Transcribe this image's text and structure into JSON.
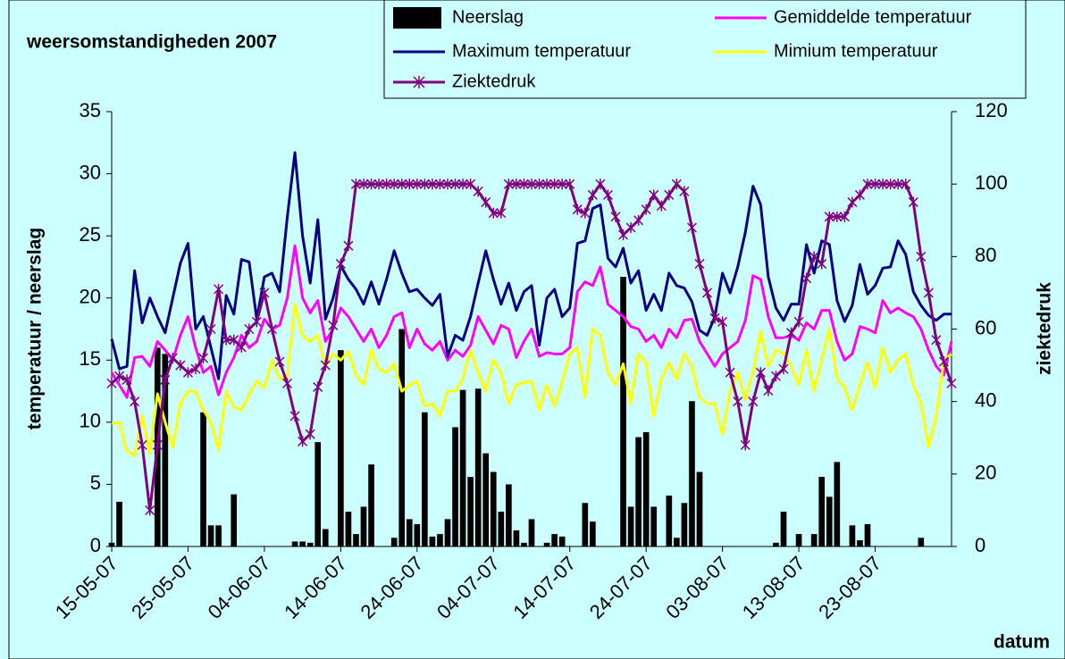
{
  "chart_data": {
    "type": "combo",
    "title": "weersomstandigheden 2007",
    "y_label": "temperatuur / neerslag",
    "y2_label": "ziektedruk",
    "x_label": "datum",
    "categories": [
      "15-05-07",
      null,
      null,
      null,
      null,
      null,
      null,
      null,
      null,
      null,
      "25-05-07",
      null,
      null,
      null,
      null,
      null,
      null,
      null,
      null,
      null,
      "04-06-07",
      null,
      null,
      null,
      null,
      null,
      null,
      null,
      null,
      null,
      "14-06-07",
      null,
      null,
      null,
      null,
      null,
      null,
      null,
      null,
      null,
      "24-06-07",
      null,
      null,
      null,
      null,
      null,
      null,
      null,
      null,
      null,
      "04-07-07",
      null,
      null,
      null,
      null,
      null,
      null,
      null,
      null,
      null,
      "14-07-07",
      null,
      null,
      null,
      null,
      null,
      null,
      null,
      null,
      null,
      "24-07-07",
      null,
      null,
      null,
      null,
      null,
      null,
      null,
      null,
      null,
      "03-08-07",
      null,
      null,
      null,
      null,
      null,
      null,
      null,
      null,
      null,
      "13-08-07",
      null,
      null,
      null,
      null,
      null,
      null,
      null,
      null,
      null,
      "23-08-07",
      null,
      null,
      null,
      null,
      null,
      null,
      null,
      null,
      null,
      null
    ],
    "ylim": [
      0,
      35
    ],
    "yticks": [
      0,
      5,
      10,
      15,
      20,
      25,
      30,
      35
    ],
    "y2lim": [
      0,
      120
    ],
    "y2ticks": [
      0,
      20,
      40,
      60,
      80,
      100,
      120
    ],
    "grid": false,
    "legend": "top",
    "series": [
      {
        "name": "Neerslag",
        "type": "bar",
        "color": "#000000",
        "values": [
          0.3,
          3.6,
          0,
          0,
          0,
          0,
          16,
          15.5,
          0,
          0,
          0,
          0,
          10.8,
          1.7,
          1.7,
          0,
          4.2,
          0,
          0,
          0,
          0,
          0,
          0,
          0,
          0.4,
          0.4,
          0.3,
          8.4,
          1.4,
          0,
          15.8,
          2.8,
          1,
          3.2,
          6.6,
          0,
          0,
          0.7,
          17.5,
          2.2,
          1.8,
          10.8,
          0.8,
          1,
          2.2,
          9.6,
          12.6,
          5.6,
          12.7,
          7.5,
          6,
          2.8,
          5,
          1.3,
          0.3,
          2.2,
          0,
          0.3,
          1,
          0.8,
          0,
          0,
          3.5,
          2,
          0,
          0,
          0,
          21.7,
          3.2,
          8.8,
          9.2,
          3.2,
          0,
          4.1,
          0.7,
          3.5,
          11.7,
          6,
          0,
          0,
          0,
          0,
          0,
          0,
          0,
          0,
          0,
          0.3,
          2.8,
          0,
          1,
          0,
          1,
          5.6,
          4,
          6.8,
          0,
          1.7,
          0.5,
          1.8,
          0,
          0,
          0,
          0,
          0,
          0,
          0.7,
          0,
          0,
          0,
          0
        ]
      },
      {
        "name": "Gemiddelde temperatuur",
        "type": "line",
        "color": "#ff00ff",
        "values": [
          14,
          13,
          12,
          15.2,
          15.3,
          14.5,
          16.5,
          15.8,
          15,
          17,
          18.5,
          16,
          14,
          14.5,
          12.2,
          14,
          15.2,
          17,
          16,
          16.5,
          18.3,
          17.5,
          17.8,
          20,
          24.2,
          20,
          18.8,
          19.8,
          16.5,
          17.5,
          19.2,
          18.5,
          17.5,
          16.5,
          17.5,
          16,
          17,
          18.5,
          18.8,
          16,
          17.5,
          16.3,
          15.8,
          16.5,
          15,
          15.8,
          15.3,
          16.2,
          18.5,
          17.4,
          16.3,
          17.8,
          17.5,
          15.2,
          16.5,
          17.5,
          15.3,
          15.6,
          15.5,
          15.5,
          16,
          20.5,
          21.3,
          21,
          22.5,
          19.5,
          19,
          18.5,
          17.7,
          17.5,
          16.5,
          17,
          16,
          17.5,
          16.8,
          18.2,
          18.3,
          16.5,
          15.5,
          14.5,
          15.5,
          16,
          16.5,
          18.2,
          21.8,
          21.5,
          18.5,
          16.8,
          16.8,
          17,
          16.6,
          18,
          17.5,
          19,
          19,
          16.5,
          15,
          15.5,
          17.7,
          17.5,
          17.2,
          19.8,
          18.8,
          19.2,
          18.8,
          18.5,
          17.5,
          15.8,
          14.5,
          13.8,
          16.5
        ]
      },
      {
        "name": "Maximum temperatuur",
        "type": "line",
        "color": "#000080",
        "values": [
          16.7,
          14.3,
          14.5,
          22.2,
          18,
          20,
          18.5,
          17.2,
          20,
          22.8,
          24.4,
          17.5,
          18.5,
          16,
          13.5,
          20.2,
          18.7,
          23.1,
          22.9,
          18.3,
          21.7,
          22,
          20.5,
          26.5,
          31.7,
          25,
          21.2,
          26.3,
          18.3,
          20,
          22.6,
          21.5,
          20.7,
          19.5,
          21.3,
          19.5,
          21.5,
          23.8,
          22,
          20.5,
          20.7,
          20,
          19.4,
          20.3,
          15.3,
          17,
          16.6,
          18.5,
          21.2,
          23.8,
          21.5,
          19.5,
          21.2,
          19,
          20.5,
          21,
          16.2,
          20,
          20.7,
          18.5,
          19.2,
          24.4,
          24.6,
          27.2,
          27.5,
          23.2,
          22.5,
          24,
          21.2,
          22.2,
          19,
          20.3,
          19,
          22,
          21,
          20.8,
          19.7,
          17.4,
          17,
          18.5,
          22,
          20.4,
          22.5,
          25.3,
          29,
          27.5,
          21.7,
          19.2,
          18.2,
          19.5,
          19.5,
          24.3,
          22,
          24.6,
          24.3,
          19.8,
          18.1,
          19.4,
          22.7,
          20.3,
          21,
          22.4,
          22.5,
          24.6,
          23.5,
          20.5,
          19.4,
          18.6,
          18.2,
          18.7,
          18.7
        ]
      },
      {
        "name": "Mimium temperatuur",
        "type": "line",
        "color": "#ffff00",
        "values": [
          9.9,
          10,
          7.7,
          7.3,
          10.5,
          7.5,
          12.3,
          10,
          8,
          11.5,
          12.5,
          12.5,
          11,
          10,
          7.8,
          12.5,
          11.2,
          11,
          12.2,
          13.3,
          12.8,
          15,
          13.5,
          13.7,
          19.5,
          17,
          16.5,
          17,
          14.5,
          15.5,
          15,
          15.7,
          13.8,
          13,
          15.8,
          14.3,
          14,
          14.7,
          12.5,
          13,
          13.3,
          11.3,
          11.5,
          10.5,
          12.5,
          12.5,
          13.5,
          15.8,
          14,
          12.5,
          15,
          14,
          11.5,
          13,
          13.2,
          13.3,
          11,
          13,
          11.3,
          13.2,
          15.5,
          16,
          12,
          17.5,
          17,
          14,
          13,
          14.7,
          11.5,
          15.5,
          14.8,
          10.5,
          13.5,
          14.8,
          13.5,
          15.5,
          14.5,
          12,
          11.5,
          11.5,
          9,
          12.5,
          14,
          11.8,
          14,
          17.3,
          14.5,
          15.8,
          15.5,
          14.5,
          13,
          15.8,
          12.5,
          15,
          17.5,
          13.5,
          12.8,
          11,
          13,
          14.8,
          12.8,
          16,
          14,
          15,
          15.5,
          13,
          11.5,
          8,
          10.5,
          15,
          15.5
        ]
      },
      {
        "name": "Ziektedruk",
        "type": "line",
        "axis": "y2",
        "marker": "asterisk",
        "color": "#800080",
        "values": [
          45,
          47,
          46,
          40,
          28,
          10,
          28,
          46,
          52,
          50,
          48,
          49,
          52,
          60,
          71,
          57,
          57,
          55,
          60,
          62,
          70,
          60,
          51,
          45,
          36,
          29,
          31,
          44,
          50,
          61,
          78,
          83,
          100,
          100,
          100,
          100,
          100,
          100,
          100,
          100,
          100,
          100,
          100,
          100,
          100,
          100,
          100,
          100,
          98,
          95,
          92,
          92,
          100,
          100,
          100,
          100,
          100,
          100,
          100,
          100,
          100,
          93,
          92,
          97,
          100,
          97,
          91,
          86,
          88,
          90,
          93,
          97,
          94,
          97,
          100,
          98,
          88,
          78,
          70,
          63,
          62,
          48,
          40,
          28,
          40,
          48,
          43,
          47,
          49,
          59,
          62,
          74,
          80,
          78,
          91,
          91,
          91,
          95,
          97,
          100,
          100,
          100,
          100,
          100,
          100,
          95,
          80,
          70,
          57,
          51,
          45
        ]
      }
    ]
  }
}
